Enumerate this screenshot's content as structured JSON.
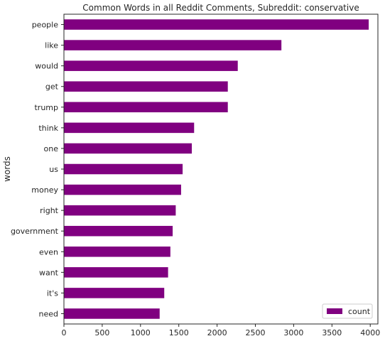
{
  "chart_data": {
    "type": "bar",
    "orientation": "horizontal",
    "title": "Common Words in all Reddit Comments, Subreddit: conservative",
    "xlabel": "",
    "ylabel": "words",
    "categories": [
      "people",
      "like",
      "would",
      "get",
      "trump",
      "think",
      "one",
      "us",
      "money",
      "right",
      "government",
      "even",
      "want",
      "it's",
      "need"
    ],
    "series": [
      {
        "name": "count",
        "color": "#800080",
        "values": [
          3980,
          2840,
          2270,
          2140,
          2140,
          1700,
          1670,
          1550,
          1530,
          1460,
          1420,
          1390,
          1360,
          1310,
          1250
        ]
      }
    ],
    "xlim": [
      0,
      4100
    ],
    "xticks": [
      0,
      500,
      1000,
      1500,
      2000,
      2500,
      3000,
      3500,
      4000
    ],
    "grid": false,
    "legend": {
      "position": "bottom-right",
      "entries": [
        "count"
      ]
    }
  }
}
